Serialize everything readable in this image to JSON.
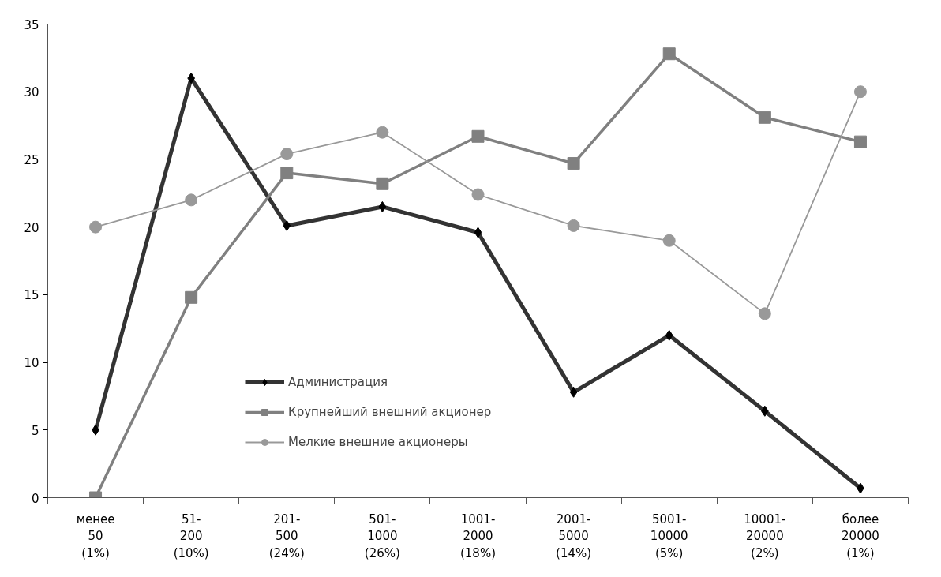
{
  "chart_data": {
    "type": "line",
    "categories": [
      "менее\n50\n(1%)",
      "51-\n200\n(10%)",
      "201-\n500\n(24%)",
      "501-\n1000\n(26%)",
      "1001-\n2000\n(18%)",
      "2001-\n5000\n(14%)",
      "5001-\n10000\n(5%)",
      "10001-\n20000\n(2%)",
      "более\n20000\n(1%)"
    ],
    "series": [
      {
        "name": "Администрация",
        "color": "#333333",
        "marker": "diamond",
        "values": [
          5,
          31,
          20.1,
          21.5,
          19.6,
          7.8,
          12,
          6.4,
          0.7
        ]
      },
      {
        "name": "Крупнейший внешний акционер",
        "color": "#808080",
        "marker": "square",
        "values": [
          0,
          14.8,
          24,
          23.2,
          26.7,
          24.7,
          32.8,
          28.1,
          26.3
        ]
      },
      {
        "name": "Мелкие внешние акционеры",
        "color": "#999999",
        "marker": "circle",
        "values": [
          20,
          22,
          25.4,
          27,
          22.4,
          20.1,
          19,
          13.6,
          30
        ]
      }
    ],
    "ylim": [
      0,
      35
    ],
    "yticks": [
      0,
      5,
      10,
      15,
      20,
      25,
      30,
      35
    ],
    "grid": false,
    "legend": "center left",
    "line_style": "solid"
  }
}
